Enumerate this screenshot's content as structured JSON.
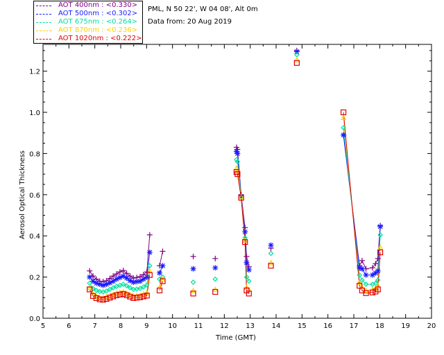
{
  "legend": {
    "items": [
      {
        "label": "AOT  400nm : <0.330>",
        "color": "#800080"
      },
      {
        "label": "AOT  500nm : <0.302>",
        "color": "#1a1aff"
      },
      {
        "label": "AOT  675nm : <0.264>",
        "color": "#00e0a0"
      },
      {
        "label": "AOT  870nm : <0.236>",
        "color": "#ffd000"
      },
      {
        "label": "AOT 1020nm : <0.222>",
        "color": "#e00000"
      }
    ]
  },
  "info": {
    "site": "PML, N 50 22', W 04 08', Alt 0m",
    "date": "Data from: 20 Aug 2019"
  },
  "chart_data": {
    "type": "scatter",
    "xlabel": "Time (GMT)",
    "ylabel": "Aerosol Optical Thickness",
    "xlim": [
      5,
      20
    ],
    "ylim": [
      0,
      1.33
    ],
    "xticks": [
      5,
      6,
      7,
      8,
      9,
      10,
      11,
      12,
      13,
      14,
      15,
      16,
      17,
      18,
      19,
      20
    ],
    "yticks": [
      0.0,
      0.2,
      0.4,
      0.6,
      0.8,
      1.0,
      1.2
    ],
    "ytick_labels": [
      "0.0",
      "0.2",
      "0.4",
      "0.6",
      "0.8",
      "1.0",
      "1.2"
    ],
    "x": [
      6.8,
      6.93,
      7.06,
      7.19,
      7.32,
      7.45,
      7.58,
      7.71,
      7.84,
      7.97,
      8.1,
      8.23,
      8.36,
      8.49,
      8.62,
      8.75,
      8.88,
      9.01,
      9.12,
      9.5,
      9.62,
      10.8,
      11.65,
      12.47,
      12.51,
      12.65,
      12.8,
      12.86,
      12.95,
      13.8,
      14.8,
      16.6,
      17.22,
      17.32,
      17.47,
      17.72,
      17.84,
      17.93,
      18.02
    ],
    "segments": [
      [
        0,
        18
      ],
      [
        19,
        20
      ],
      [
        23,
        28
      ],
      [
        31,
        38
      ]
    ],
    "series": [
      {
        "name": "AOT  400nm",
        "marker": "plus",
        "color": "#800080",
        "values": [
          0.23,
          0.205,
          0.19,
          0.18,
          0.178,
          0.182,
          0.193,
          0.205,
          0.215,
          0.225,
          0.232,
          0.218,
          0.205,
          0.195,
          0.198,
          0.202,
          0.212,
          0.225,
          0.405,
          0.255,
          0.325,
          0.3,
          0.29,
          0.83,
          0.82,
          0.6,
          0.44,
          0.3,
          0.25,
          0.34,
          1.3,
          0.89,
          0.255,
          0.28,
          0.24,
          0.245,
          0.265,
          0.29,
          0.45
        ]
      },
      {
        "name": "AOT  500nm",
        "marker": "star",
        "color": "#1a1aff",
        "values": [
          0.2,
          0.18,
          0.17,
          0.165,
          0.16,
          0.165,
          0.172,
          0.18,
          0.19,
          0.198,
          0.205,
          0.195,
          0.183,
          0.175,
          0.178,
          0.18,
          0.19,
          0.2,
          0.32,
          0.22,
          0.255,
          0.24,
          0.245,
          0.81,
          0.8,
          0.59,
          0.42,
          0.27,
          0.235,
          0.355,
          1.295,
          0.89,
          0.245,
          0.24,
          0.21,
          0.21,
          0.22,
          0.23,
          0.445
        ]
      },
      {
        "name": "AOT  675nm",
        "marker": "diamond",
        "color": "#00e0a0",
        "values": [
          0.17,
          0.145,
          0.135,
          0.13,
          0.128,
          0.132,
          0.14,
          0.148,
          0.155,
          0.16,
          0.165,
          0.158,
          0.148,
          0.14,
          0.142,
          0.145,
          0.152,
          0.162,
          0.255,
          0.19,
          0.2,
          0.175,
          0.19,
          0.77,
          0.76,
          0.59,
          0.39,
          0.2,
          0.18,
          0.315,
          1.28,
          0.925,
          0.21,
          0.185,
          0.165,
          0.165,
          0.17,
          0.185,
          0.405
        ]
      },
      {
        "name": "AOT  870nm",
        "marker": "triangle",
        "color": "#ffd000",
        "values": [
          0.15,
          0.12,
          0.108,
          0.102,
          0.1,
          0.104,
          0.11,
          0.116,
          0.122,
          0.125,
          0.128,
          0.122,
          0.115,
          0.108,
          0.11,
          0.112,
          0.118,
          0.125,
          0.23,
          0.15,
          0.19,
          0.135,
          0.14,
          0.73,
          0.72,
          0.59,
          0.38,
          0.15,
          0.14,
          0.27,
          1.255,
          0.975,
          0.175,
          0.15,
          0.135,
          0.14,
          0.145,
          0.16,
          0.345
        ]
      },
      {
        "name": "AOT 1020nm",
        "marker": "square",
        "color": "#e00000",
        "values": [
          0.14,
          0.108,
          0.098,
          0.092,
          0.09,
          0.094,
          0.1,
          0.106,
          0.112,
          0.115,
          0.118,
          0.112,
          0.105,
          0.098,
          0.1,
          0.102,
          0.106,
          0.11,
          0.21,
          0.135,
          0.18,
          0.12,
          0.128,
          0.71,
          0.7,
          0.585,
          0.37,
          0.135,
          0.12,
          0.255,
          1.24,
          1.0,
          0.158,
          0.135,
          0.122,
          0.125,
          0.13,
          0.14,
          0.32
        ]
      }
    ]
  }
}
